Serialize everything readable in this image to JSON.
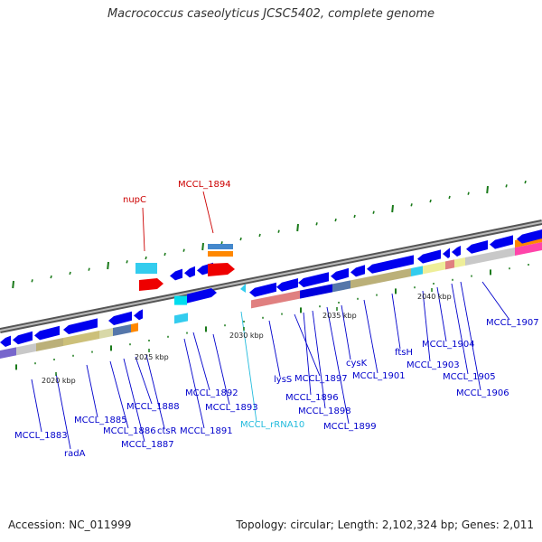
{
  "title": "Macrococcus caseolyticus JCSC5402, complete genome",
  "footer": {
    "accession": "Accession: NC_011999",
    "topology": "Topology: circular; Length: 2,102,324 bp; Genes: 2,011"
  },
  "colors": {
    "gene_blue": "#0000ee",
    "label_blue": "#0000cc",
    "trna_cyan": "#33ccee",
    "red_gene": "#ee0000",
    "orange": "#ff8800",
    "olive": "#bbb079",
    "pink_track": "#e08080",
    "green_tick": "#1a7a1a"
  },
  "scale_labels": [
    "2020 kbp",
    "2025 kbp",
    "2030 kbp",
    "2035 kbp",
    "2040 kbp"
  ],
  "gene_labels": [
    {
      "name": "nupC",
      "color": "#cc0000"
    },
    {
      "name": "MCCL_1894",
      "color": "#cc0000"
    },
    {
      "name": "MCCL_1883",
      "color": "#0000cc"
    },
    {
      "name": "radA",
      "color": "#0000cc"
    },
    {
      "name": "MCCL_1885",
      "color": "#0000cc"
    },
    {
      "name": "MCCL_1886",
      "color": "#0000cc"
    },
    {
      "name": "MCCL_1887",
      "color": "#0000cc"
    },
    {
      "name": "MCCL_1888",
      "color": "#0000cc"
    },
    {
      "name": "ctsR",
      "color": "#0000cc"
    },
    {
      "name": "MCCL_1891",
      "color": "#0000cc"
    },
    {
      "name": "MCCL_1892",
      "color": "#0000cc"
    },
    {
      "name": "MCCL_1893",
      "color": "#0000cc"
    },
    {
      "name": "MCCL_rRNA10",
      "color": "#22bbdd"
    },
    {
      "name": "lysS",
      "color": "#0000cc"
    },
    {
      "name": "MCCL_1897",
      "color": "#0000cc"
    },
    {
      "name": "MCCL_1896",
      "color": "#0000cc"
    },
    {
      "name": "MCCL_1898",
      "color": "#0000cc"
    },
    {
      "name": "MCCL_1899",
      "color": "#0000cc"
    },
    {
      "name": "cysK",
      "color": "#0000cc"
    },
    {
      "name": "MCCL_1901",
      "color": "#0000cc"
    },
    {
      "name": "ftsH",
      "color": "#0000cc"
    },
    {
      "name": "MCCL_1903",
      "color": "#0000cc"
    },
    {
      "name": "MCCL_1904",
      "color": "#0000cc"
    },
    {
      "name": "MCCL_1905",
      "color": "#0000cc"
    },
    {
      "name": "MCCL_1906",
      "color": "#0000cc"
    },
    {
      "name": "MCCL_1907",
      "color": "#0000cc"
    }
  ]
}
